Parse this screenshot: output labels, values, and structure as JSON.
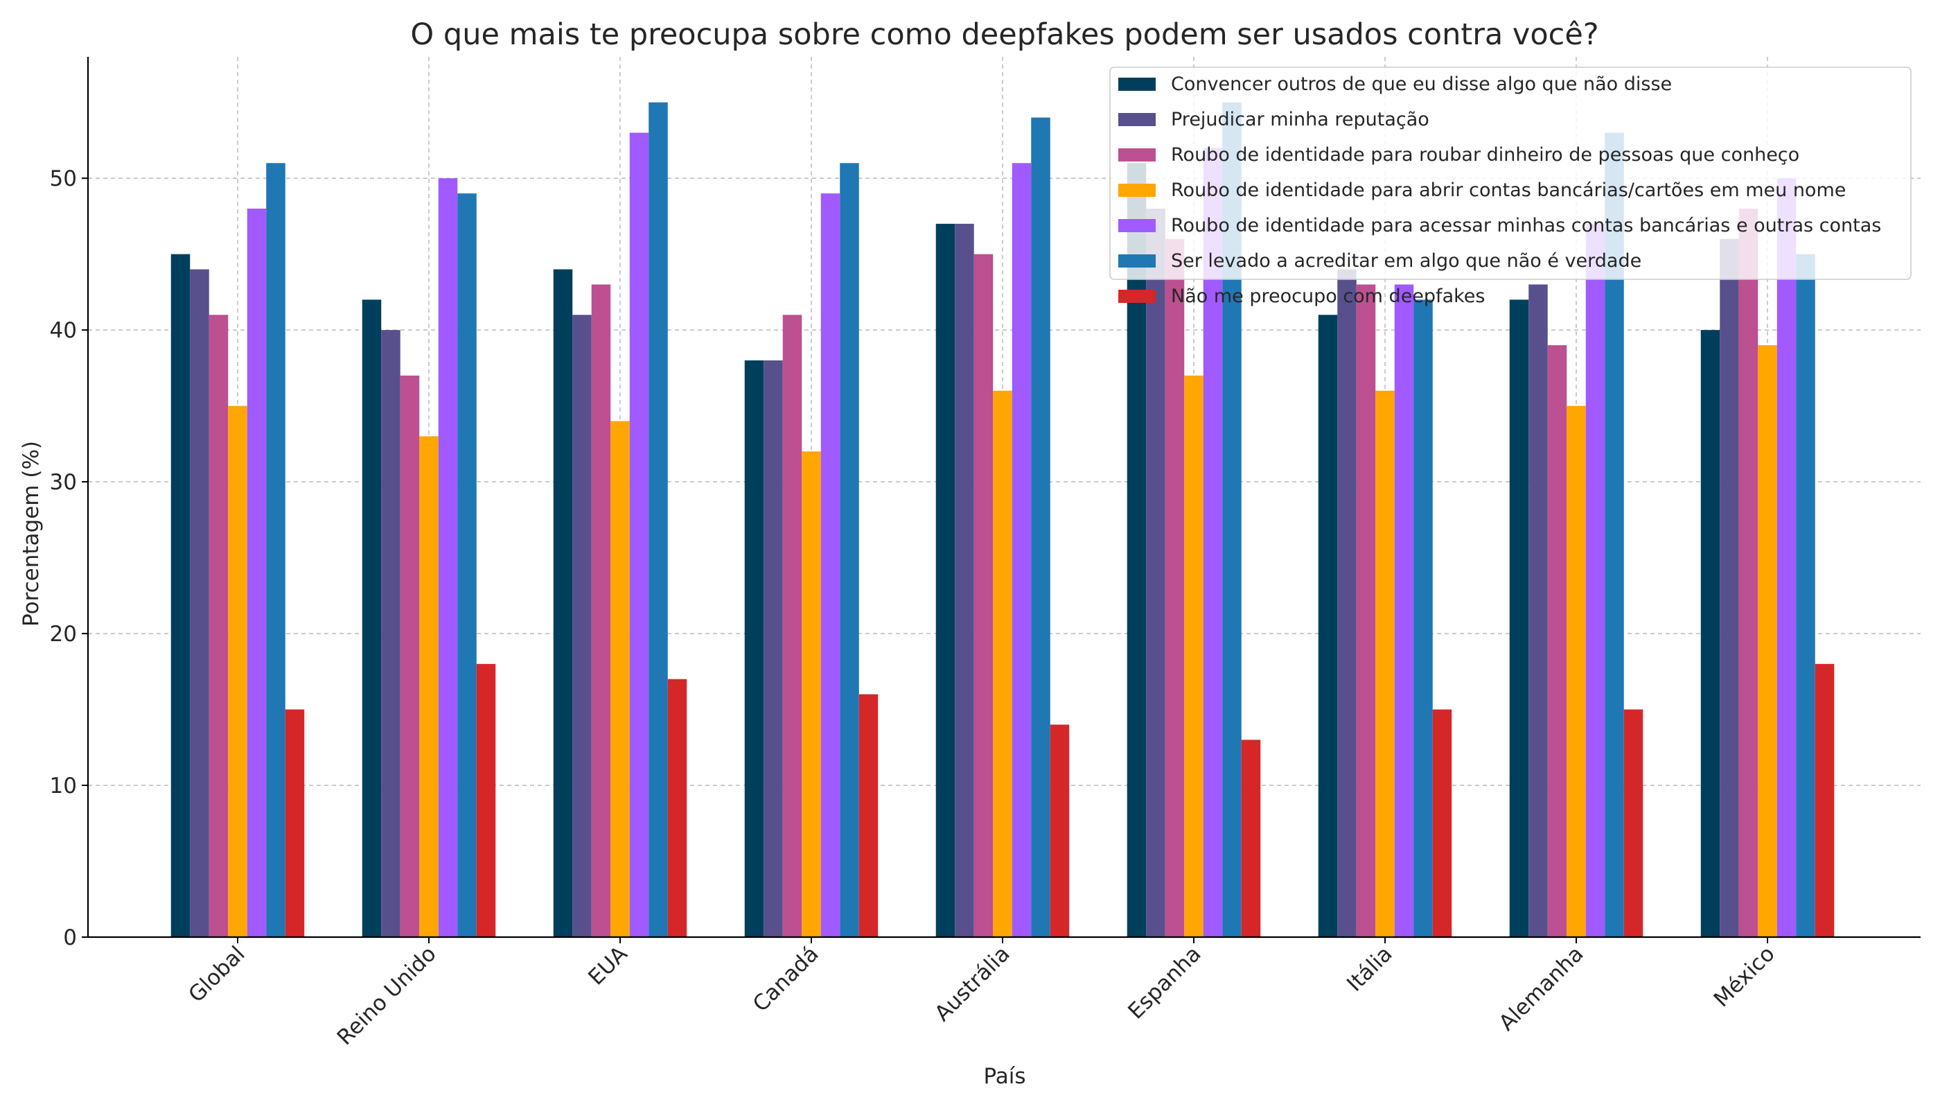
{
  "chart_data": {
    "type": "bar",
    "title": "O que mais te preocupa sobre como deepfakes podem ser usados contra você?",
    "xlabel": "País",
    "ylabel": "Porcentagem (%)",
    "ylim": [
      0,
      58
    ],
    "yticks": [
      0,
      10,
      20,
      30,
      40,
      50
    ],
    "grid": true,
    "legend_position": "top-right",
    "categories": [
      "Global",
      "Reino Unido",
      "EUA",
      "Canadá",
      "Austrália",
      "Espanha",
      "Itália",
      "Alemanha",
      "México"
    ],
    "series": [
      {
        "name": "Convencer outros de que eu disse algo que não disse",
        "color": "#003f5c",
        "values": [
          45,
          42,
          44,
          38,
          47,
          51,
          41,
          42,
          40
        ]
      },
      {
        "name": "Prejudicar minha reputação",
        "color": "#58508d",
        "values": [
          44,
          40,
          41,
          38,
          47,
          48,
          44,
          43,
          46
        ]
      },
      {
        "name": "Roubo de identidade para roubar dinheiro de pessoas que conheço",
        "color": "#bc5090",
        "values": [
          41,
          37,
          43,
          41,
          45,
          46,
          43,
          39,
          48
        ]
      },
      {
        "name": "Roubo de identidade para abrir contas bancárias/cartões em meu nome",
        "color": "#ffa600",
        "values": [
          35,
          33,
          34,
          32,
          36,
          37,
          36,
          35,
          39
        ]
      },
      {
        "name": "Roubo de identidade para acessar minhas contas bancárias e outras contas",
        "color": "#a05aff",
        "values": [
          48,
          50,
          53,
          49,
          51,
          52,
          43,
          47,
          50
        ]
      },
      {
        "name": "Ser levado a acreditar em algo que não é verdade",
        "color": "#1f77b4",
        "values": [
          51,
          49,
          55,
          51,
          54,
          55,
          42,
          53,
          45
        ]
      },
      {
        "name": "Não me preocupo com deepfakes",
        "color": "#d62728",
        "values": [
          15,
          18,
          17,
          16,
          14,
          13,
          15,
          15,
          18
        ]
      }
    ]
  }
}
